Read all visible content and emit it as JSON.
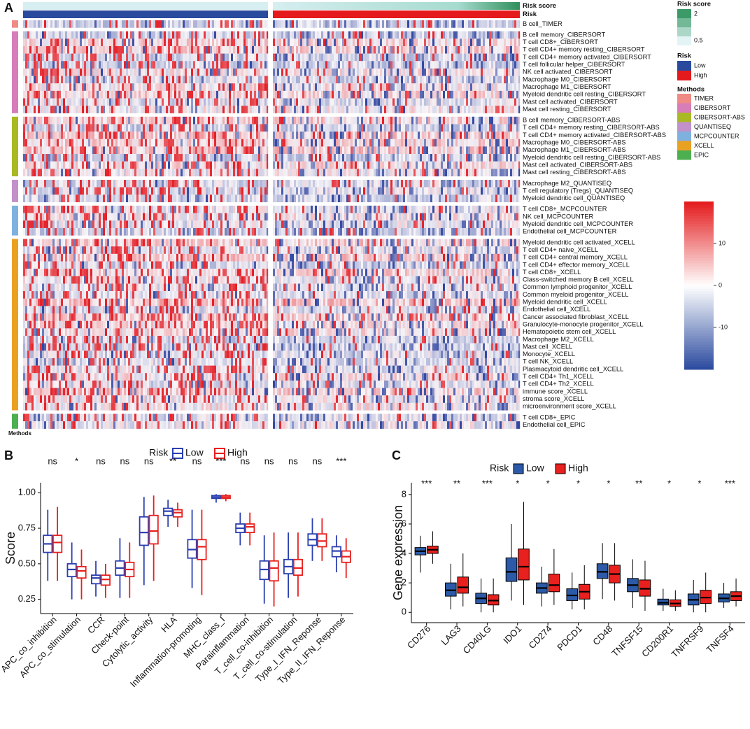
{
  "chart_data": [
    {
      "type": "heatmap",
      "panel": "A",
      "risk_score_label": "Risk score",
      "risk_label": "Risk",
      "xlabel": "Methods",
      "groups": [
        {
          "name": "TIMER",
          "color": "#f08a84",
          "rows": [
            "B cell_TIMER"
          ]
        },
        {
          "name": "CIBERSORT",
          "color": "#d77db8",
          "rows": [
            "B cell memory_CIBERSORT",
            "T cell CD8+_CIBERSORT",
            "T cell CD4+ memory resting_CIBERSORT",
            "T cell CD4+ memory activated_CIBERSORT",
            "T cell follicular helper_CIBERSORT",
            "NK cell activated_CIBERSORT",
            "Macrophage M0_CIBERSORT",
            "Macrophage M1_CIBERSORT",
            "Myeloid dendritic cell resting_CIBERSORT",
            "Mast cell activated_CIBERSORT",
            "Mast cell resting_CIBERSORT"
          ]
        },
        {
          "name": "CIBERSORT-ABS",
          "color": "#a9b923",
          "rows": [
            "B cell memory_CIBERSORT-ABS",
            "T cell CD4+ memory resting_CIBERSORT-ABS",
            "T cell CD4+ memory activated_CIBERSORT-ABS",
            "Macrophage M0_CIBERSORT-ABS",
            "Macrophage M1_CIBERSORT-ABS",
            "Myeloid dendritic cell resting_CIBERSORT-ABS",
            "Mast cell activated_CIBERSORT-ABS",
            "Mast cell resting_CIBERSORT-ABS"
          ]
        },
        {
          "name": "QUANTISEQ",
          "color": "#c291c9",
          "rows": [
            "Macrophage M2_QUANTISEQ",
            "T cell regulatory (Tregs)_QUANTISEQ",
            "Myeloid dendritic cell_QUANTISEQ"
          ]
        },
        {
          "name": "MCPCOUNTER",
          "color": "#7fb1df",
          "rows": [
            "T cell CD8+_MCPCOUNTER",
            "NK cell_MCPCOUNTER",
            "Myeloid dendritic cell_MCPCOUNTER",
            "Endothelial cell_MCPCOUNTER"
          ]
        },
        {
          "name": "XCELL",
          "color": "#e9a122",
          "rows": [
            "Myeloid dendritic cell activated_XCELL",
            "T cell CD4+ naive_XCELL",
            "T cell CD4+ central memory_XCELL",
            "T cell CD4+ effector memory_XCELL",
            "T cell CD8+_XCELL",
            "Class-switched memory B cell_XCELL",
            "Common lymphoid progenitor_XCELL",
            "Common myeloid progenitor_XCELL",
            "Myeloid dendritic cell_XCELL",
            "Endothelial cell_XCELL",
            "Cancer associated fibroblast_XCELL",
            "Granulocyte-monocyte progenitor_XCELL",
            "Hematopoietic stem cell_XCELL",
            "Macrophage M2_XCELL",
            "Mast cell_XCELL",
            "Monocyte_XCELL",
            "T cell NK_XCELL",
            "Plasmacytoid dendritic cell_XCELL",
            "T cell CD4+ Th1_XCELL",
            "T cell CD4+ Th2_XCELL",
            "immune score_XCELL",
            "stroma score_XCELL",
            "microenvironment score_XCELL"
          ]
        },
        {
          "name": "EPIC",
          "color": "#4caf50",
          "rows": [
            "T cell CD8+_EPIC",
            "Endothelial cell_EPIC"
          ]
        }
      ],
      "legend_risk_score": {
        "title": "Risk score",
        "ticks": [
          2,
          0.5
        ],
        "colors": [
          "#3b9a68",
          "#e4f4f6"
        ]
      },
      "legend_risk": {
        "title": "Risk",
        "categories": [
          "Low",
          "High"
        ],
        "colors": [
          "#2a4a9e",
          "#e41a1c"
        ]
      },
      "legend_methods": {
        "title": "Methods"
      },
      "colorbar": {
        "lim": [
          -20,
          20
        ],
        "ticks": [
          10,
          0,
          -10
        ],
        "colors": [
          "#2a4a9e",
          "#ffffff",
          "#e41a1c"
        ]
      }
    },
    {
      "type": "box",
      "panel": "B",
      "ylabel": "Score",
      "legend_title": "Risk",
      "ylim": [
        0.15,
        1.07
      ],
      "yticks": [
        {
          "value": 1,
          "label": "1.00"
        },
        0.75,
        {
          "value": 0.5,
          "label": "0.50"
        },
        0.25
      ],
      "categories": [
        "APC_co_inhibition",
        "APC_co_stimulation",
        "CCR",
        "Check-point",
        "Cytolytic_activity",
        "HLA",
        "Inflammation-promoting",
        "MHC_class_I",
        "Parainflammation",
        "T_cell_co-inhibition",
        "T_cell_co-stimulation",
        "Type_I_IFN_Reponse",
        "Type_II_IFN_Reponse"
      ],
      "significance": [
        "ns",
        "*",
        "ns",
        "ns",
        "ns",
        "**",
        "ns",
        "***",
        "ns",
        "ns",
        "ns",
        "ns",
        "***"
      ],
      "series": [
        {
          "name": "Low",
          "color": "#2b40b0",
          "values": [
            {
              "min": 0.38,
              "q1": 0.58,
              "median": 0.64,
              "q3": 0.7,
              "max": 0.88
            },
            {
              "min": 0.25,
              "q1": 0.41,
              "median": 0.46,
              "q3": 0.5,
              "max": 0.65
            },
            {
              "min": 0.27,
              "q1": 0.36,
              "median": 0.4,
              "q3": 0.42,
              "max": 0.52
            },
            {
              "min": 0.26,
              "q1": 0.42,
              "median": 0.47,
              "q3": 0.52,
              "max": 0.68
            },
            {
              "min": 0.35,
              "q1": 0.63,
              "median": 0.72,
              "q3": 0.83,
              "max": 0.97
            },
            {
              "min": 0.76,
              "q1": 0.84,
              "median": 0.87,
              "q3": 0.89,
              "max": 0.95
            },
            {
              "min": 0.33,
              "q1": 0.54,
              "median": 0.6,
              "q3": 0.67,
              "max": 0.88
            },
            {
              "min": 0.93,
              "q1": 0.96,
              "median": 0.97,
              "q3": 0.98,
              "max": 0.99
            },
            {
              "min": 0.63,
              "q1": 0.72,
              "median": 0.75,
              "q3": 0.78,
              "max": 0.86
            },
            {
              "min": 0.22,
              "q1": 0.39,
              "median": 0.46,
              "q3": 0.52,
              "max": 0.7
            },
            {
              "min": 0.26,
              "q1": 0.43,
              "median": 0.48,
              "q3": 0.53,
              "max": 0.72
            },
            {
              "min": 0.52,
              "q1": 0.63,
              "median": 0.67,
              "q3": 0.71,
              "max": 0.82
            },
            {
              "min": 0.44,
              "q1": 0.55,
              "median": 0.59,
              "q3": 0.62,
              "max": 0.7
            }
          ]
        },
        {
          "name": "High",
          "color": "#e8201e",
          "values": [
            {
              "min": 0.38,
              "q1": 0.58,
              "median": 0.65,
              "q3": 0.7,
              "max": 0.9
            },
            {
              "min": 0.25,
              "q1": 0.4,
              "median": 0.45,
              "q3": 0.48,
              "max": 0.6
            },
            {
              "min": 0.26,
              "q1": 0.35,
              "median": 0.39,
              "q3": 0.42,
              "max": 0.5
            },
            {
              "min": 0.26,
              "q1": 0.41,
              "median": 0.46,
              "q3": 0.51,
              "max": 0.65
            },
            {
              "min": 0.38,
              "q1": 0.64,
              "median": 0.73,
              "q3": 0.84,
              "max": 0.98
            },
            {
              "min": 0.76,
              "q1": 0.83,
              "median": 0.86,
              "q3": 0.88,
              "max": 0.93
            },
            {
              "min": 0.28,
              "q1": 0.53,
              "median": 0.62,
              "q3": 0.67,
              "max": 0.88
            },
            {
              "min": 0.94,
              "q1": 0.96,
              "median": 0.97,
              "q3": 0.98,
              "max": 0.99
            },
            {
              "min": 0.63,
              "q1": 0.72,
              "median": 0.76,
              "q3": 0.78,
              "max": 0.86
            },
            {
              "min": 0.2,
              "q1": 0.38,
              "median": 0.47,
              "q3": 0.52,
              "max": 0.72
            },
            {
              "min": 0.27,
              "q1": 0.42,
              "median": 0.47,
              "q3": 0.53,
              "max": 0.72
            },
            {
              "min": 0.52,
              "q1": 0.62,
              "median": 0.66,
              "q3": 0.71,
              "max": 0.82
            },
            {
              "min": 0.4,
              "q1": 0.51,
              "median": 0.55,
              "q3": 0.59,
              "max": 0.68
            }
          ]
        }
      ]
    },
    {
      "type": "box",
      "panel": "C",
      "ylabel": "Gene expression",
      "legend_title": "Risk",
      "filled": true,
      "ylim": [
        -0.7,
        8.8
      ],
      "yticks": [
        0,
        2,
        4,
        6,
        8
      ],
      "categories": [
        "CD276",
        "LAG3",
        "CD40LG",
        "IDO1",
        "CD274",
        "PDCD1",
        "CD48",
        "TNFSF15",
        "CD200R1",
        "TNFRSF9",
        "TNFSF4"
      ],
      "significance": [
        "***",
        "**",
        "***",
        "*",
        "*",
        "*",
        "*",
        "**",
        "*",
        "*",
        "***"
      ],
      "series": [
        {
          "name": "Low",
          "color": "#2c5aa8",
          "values": [
            {
              "min": 2.7,
              "q1": 3.9,
              "median": 4.15,
              "q3": 4.4,
              "max": 5.2
            },
            {
              "min": 0.2,
              "q1": 1.1,
              "median": 1.5,
              "q3": 2.0,
              "max": 3.3
            },
            {
              "min": 0,
              "q1": 0.6,
              "median": 0.95,
              "q3": 1.3,
              "max": 2.3
            },
            {
              "min": 0.8,
              "q1": 2.1,
              "median": 2.75,
              "q3": 3.7,
              "max": 6.0
            },
            {
              "min": 0.4,
              "q1": 1.3,
              "median": 1.65,
              "q3": 2.0,
              "max": 3.1
            },
            {
              "min": 0.2,
              "q1": 0.8,
              "median": 1.15,
              "q3": 1.6,
              "max": 2.7
            },
            {
              "min": 0.9,
              "q1": 2.3,
              "median": 2.75,
              "q3": 3.3,
              "max": 4.7
            },
            {
              "min": 0.3,
              "q1": 1.4,
              "median": 1.85,
              "q3": 2.3,
              "max": 3.6
            },
            {
              "min": 0.1,
              "q1": 0.5,
              "median": 0.65,
              "q3": 0.9,
              "max": 1.6
            },
            {
              "min": 0,
              "q1": 0.5,
              "median": 0.85,
              "q3": 1.25,
              "max": 2.2
            },
            {
              "min": 0.3,
              "q1": 0.7,
              "median": 0.95,
              "q3": 1.25,
              "max": 2.0
            }
          ]
        },
        {
          "name": "High",
          "color": "#e8201e",
          "values": [
            {
              "min": 3.3,
              "q1": 4.0,
              "median": 4.25,
              "q3": 4.5,
              "max": 5.5
            },
            {
              "min": 0.4,
              "q1": 1.3,
              "median": 1.7,
              "q3": 2.4,
              "max": 4.0
            },
            {
              "min": 0,
              "q1": 0.5,
              "median": 0.8,
              "q3": 1.2,
              "max": 2.3
            },
            {
              "min": 0.5,
              "q1": 2.2,
              "median": 3.1,
              "q3": 4.3,
              "max": 7.5
            },
            {
              "min": 0.5,
              "q1": 1.4,
              "median": 1.85,
              "q3": 2.6,
              "max": 4.3
            },
            {
              "min": 0.2,
              "q1": 0.9,
              "median": 1.4,
              "q3": 1.9,
              "max": 3.2
            },
            {
              "min": 0.8,
              "q1": 2.0,
              "median": 2.6,
              "q3": 3.2,
              "max": 4.7
            },
            {
              "min": 0.1,
              "q1": 1.1,
              "median": 1.6,
              "q3": 2.2,
              "max": 3.5
            },
            {
              "min": 0.1,
              "q1": 0.4,
              "median": 0.6,
              "q3": 0.85,
              "max": 1.5
            },
            {
              "min": 0,
              "q1": 0.6,
              "median": 1.0,
              "q3": 1.5,
              "max": 2.7
            },
            {
              "min": 0.4,
              "q1": 0.8,
              "median": 1.1,
              "q3": 1.4,
              "max": 2.3
            }
          ]
        }
      ]
    }
  ]
}
